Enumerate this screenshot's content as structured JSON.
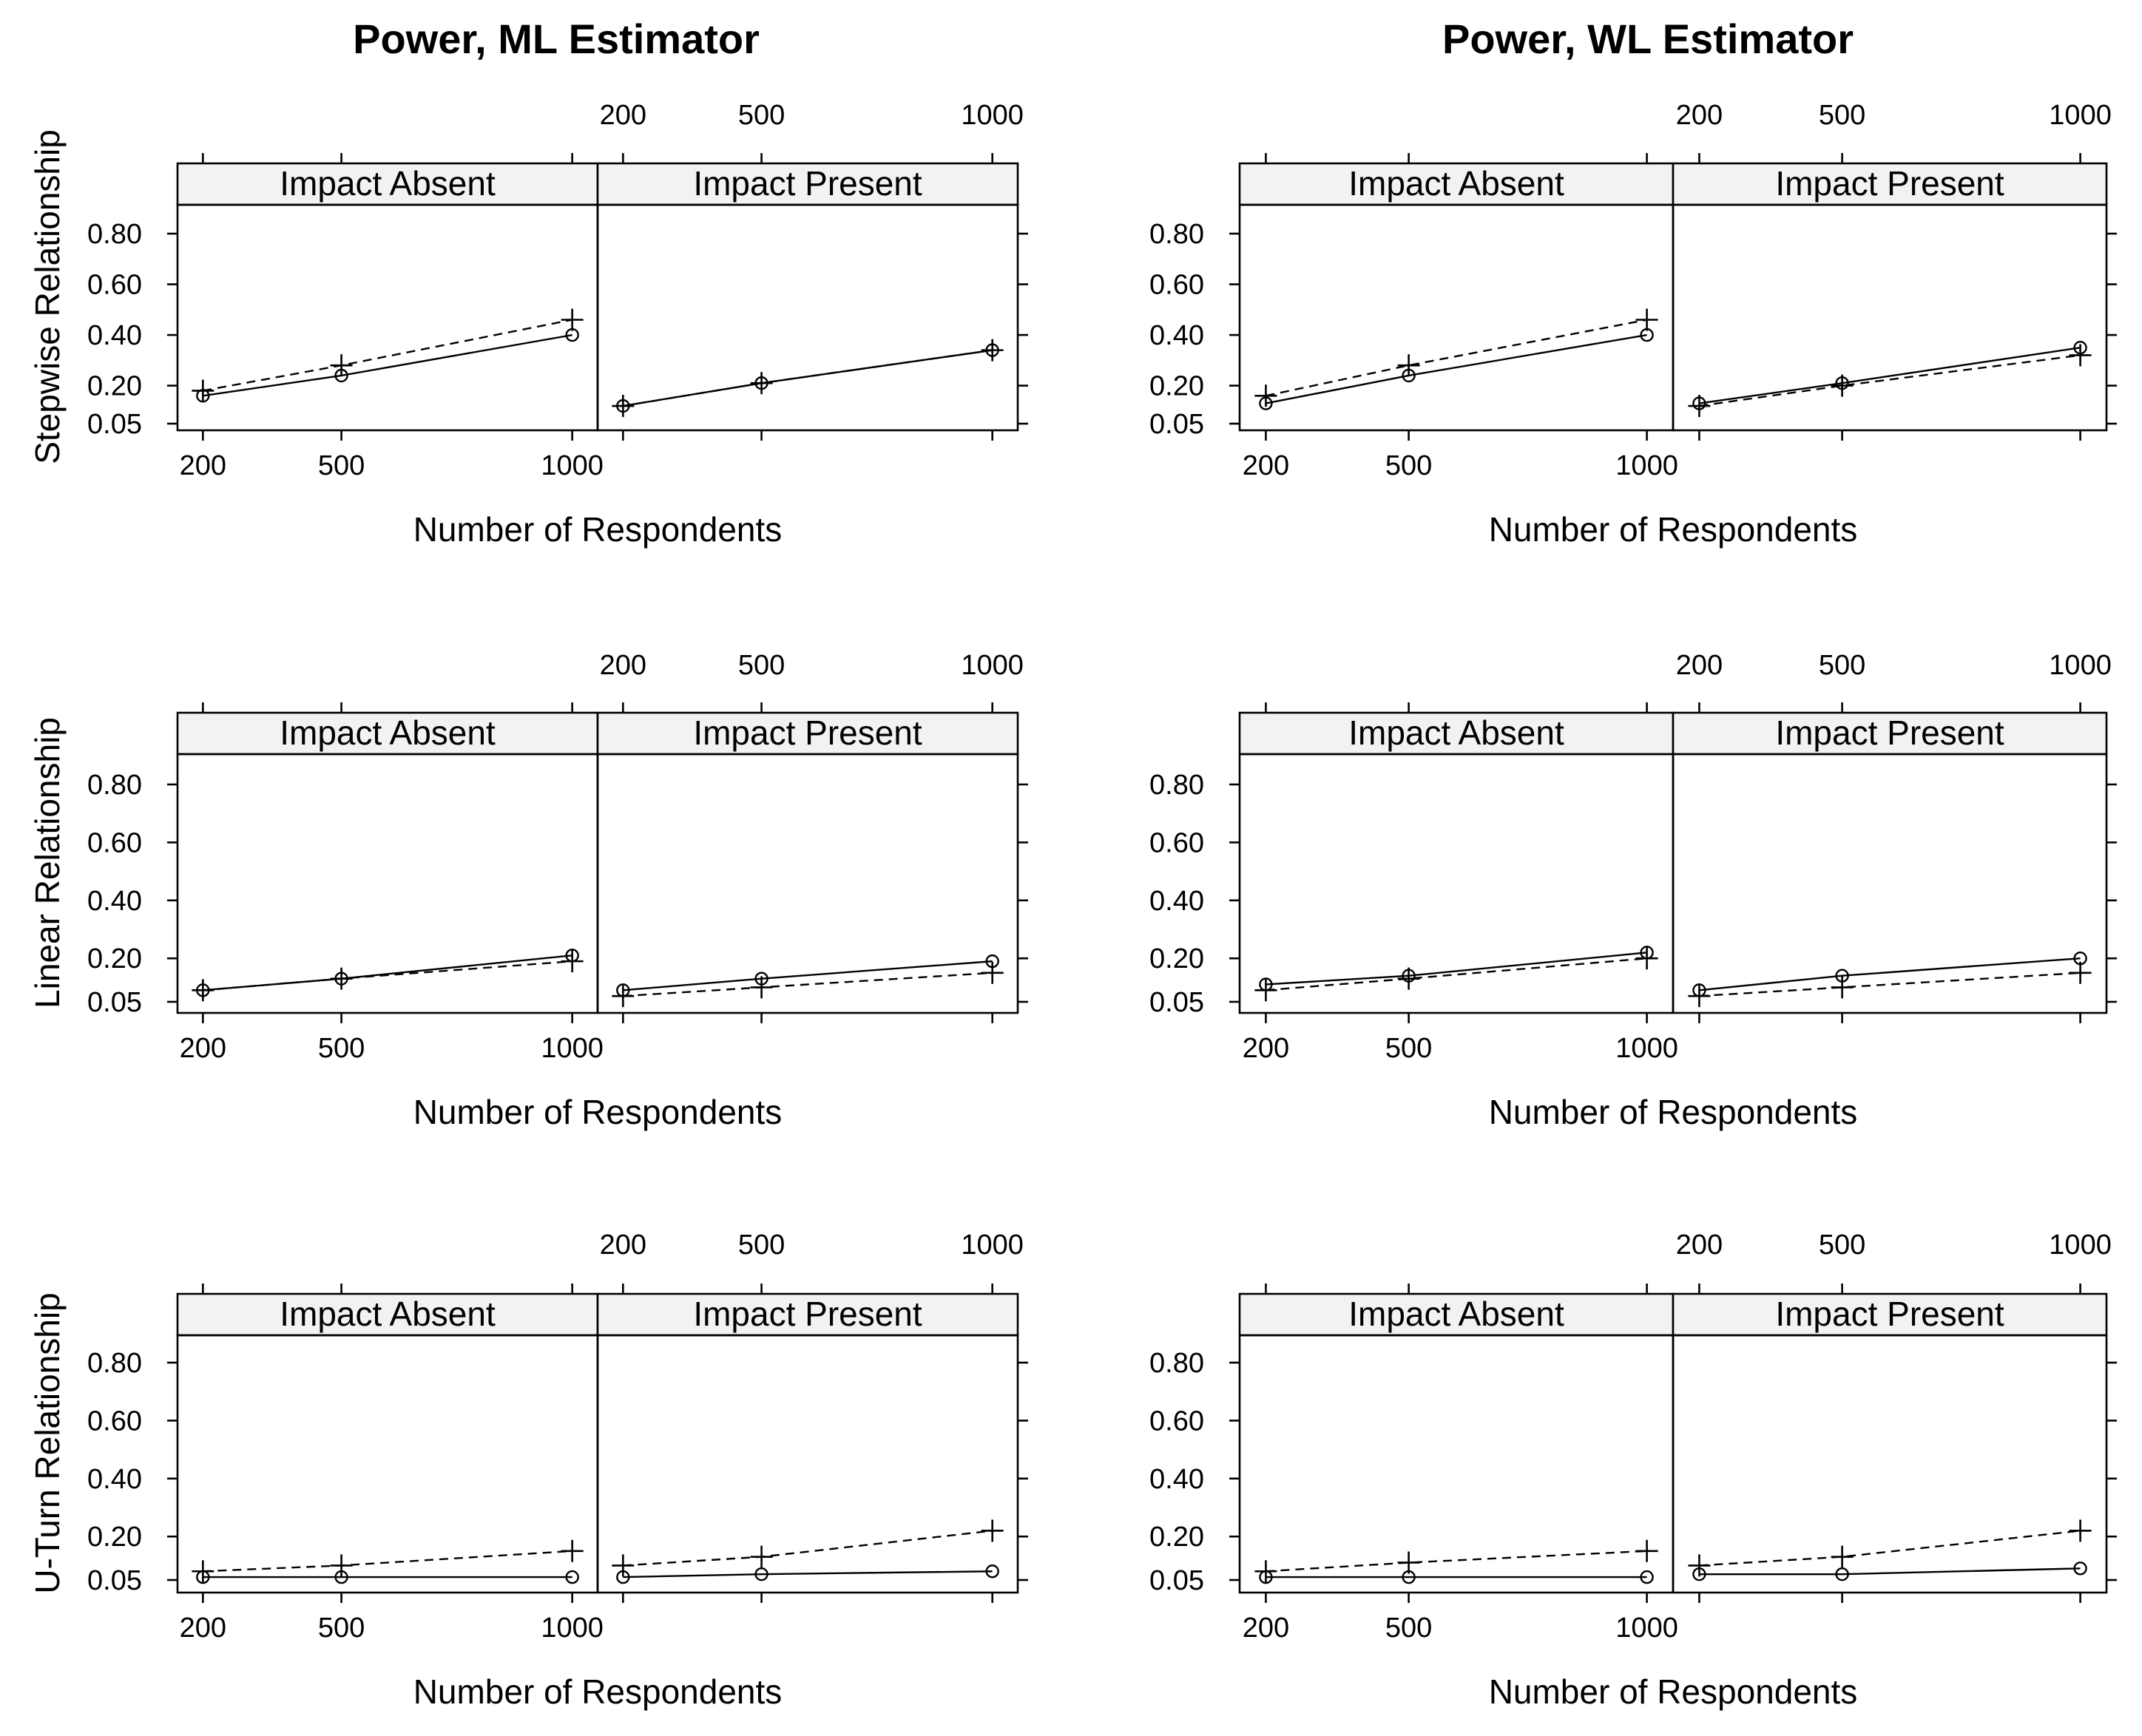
{
  "chart_data": {
    "type": "line",
    "columns": [
      {
        "title": "Power, ML Estimator"
      },
      {
        "title": "Power, WL Estimator"
      }
    ],
    "rows": [
      {
        "ylabel": "Stepwise Relationship"
      },
      {
        "ylabel": "Linear Relationship"
      },
      {
        "ylabel": "U-Turn Relationship"
      }
    ],
    "panel_labels": [
      "Impact Absent",
      "Impact Present"
    ],
    "xlabel": "Number of Respondents",
    "x": [
      200,
      500,
      1000
    ],
    "x_tick_labels": [
      "200",
      "500",
      "1000"
    ],
    "xlim": [
      145,
      1055
    ],
    "y_ticks": [
      0.05,
      0.2,
      0.4,
      0.6,
      0.8
    ],
    "y_tick_labels": [
      "0.05",
      "0.20",
      "0.40",
      "0.60",
      "0.80"
    ],
    "ylim": [
      0.01,
      0.92
    ],
    "series_styles": [
      {
        "name": "circle series",
        "line": "solid",
        "marker": "circle"
      },
      {
        "name": "plus series",
        "line": "dashed",
        "marker": "plus"
      }
    ],
    "plots": [
      {
        "row": 0,
        "col": 0,
        "panels": [
          {
            "label": "Impact Absent",
            "series": [
              {
                "values": [
                  0.16,
                  0.24,
                  0.4
                ]
              },
              {
                "values": [
                  0.18,
                  0.28,
                  0.46
                ]
              }
            ]
          },
          {
            "label": "Impact Present",
            "series": [
              {
                "values": [
                  0.12,
                  0.21,
                  0.34
                ]
              },
              {
                "values": [
                  0.12,
                  0.21,
                  0.34
                ]
              }
            ]
          }
        ]
      },
      {
        "row": 0,
        "col": 1,
        "panels": [
          {
            "label": "Impact Absent",
            "series": [
              {
                "values": [
                  0.13,
                  0.24,
                  0.4
                ]
              },
              {
                "values": [
                  0.16,
                  0.28,
                  0.46
                ]
              }
            ]
          },
          {
            "label": "Impact Present",
            "series": [
              {
                "values": [
                  0.13,
                  0.21,
                  0.35
                ]
              },
              {
                "values": [
                  0.12,
                  0.2,
                  0.32
                ]
              }
            ]
          }
        ]
      },
      {
        "row": 1,
        "col": 0,
        "panels": [
          {
            "label": "Impact Absent",
            "series": [
              {
                "values": [
                  0.09,
                  0.13,
                  0.21
                ]
              },
              {
                "values": [
                  0.09,
                  0.13,
                  0.19
                ]
              }
            ]
          },
          {
            "label": "Impact Present",
            "series": [
              {
                "values": [
                  0.09,
                  0.13,
                  0.19
                ]
              },
              {
                "values": [
                  0.07,
                  0.1,
                  0.15
                ]
              }
            ]
          }
        ]
      },
      {
        "row": 1,
        "col": 1,
        "panels": [
          {
            "label": "Impact Absent",
            "series": [
              {
                "values": [
                  0.11,
                  0.14,
                  0.22
                ]
              },
              {
                "values": [
                  0.09,
                  0.13,
                  0.2
                ]
              }
            ]
          },
          {
            "label": "Impact Present",
            "series": [
              {
                "values": [
                  0.09,
                  0.14,
                  0.2
                ]
              },
              {
                "values": [
                  0.07,
                  0.1,
                  0.15
                ]
              }
            ]
          }
        ]
      },
      {
        "row": 2,
        "col": 0,
        "panels": [
          {
            "label": "Impact Absent",
            "series": [
              {
                "values": [
                  0.06,
                  0.06,
                  0.06
                ]
              },
              {
                "values": [
                  0.08,
                  0.1,
                  0.15
                ]
              }
            ]
          },
          {
            "label": "Impact Present",
            "series": [
              {
                "values": [
                  0.06,
                  0.07,
                  0.08
                ]
              },
              {
                "values": [
                  0.1,
                  0.13,
                  0.22
                ]
              }
            ]
          }
        ]
      },
      {
        "row": 2,
        "col": 1,
        "panels": [
          {
            "label": "Impact Absent",
            "series": [
              {
                "values": [
                  0.06,
                  0.06,
                  0.06
                ]
              },
              {
                "values": [
                  0.08,
                  0.11,
                  0.15
                ]
              }
            ]
          },
          {
            "label": "Impact Present",
            "series": [
              {
                "values": [
                  0.07,
                  0.07,
                  0.09
                ]
              },
              {
                "values": [
                  0.1,
                  0.13,
                  0.22
                ]
              }
            ]
          }
        ]
      }
    ]
  }
}
